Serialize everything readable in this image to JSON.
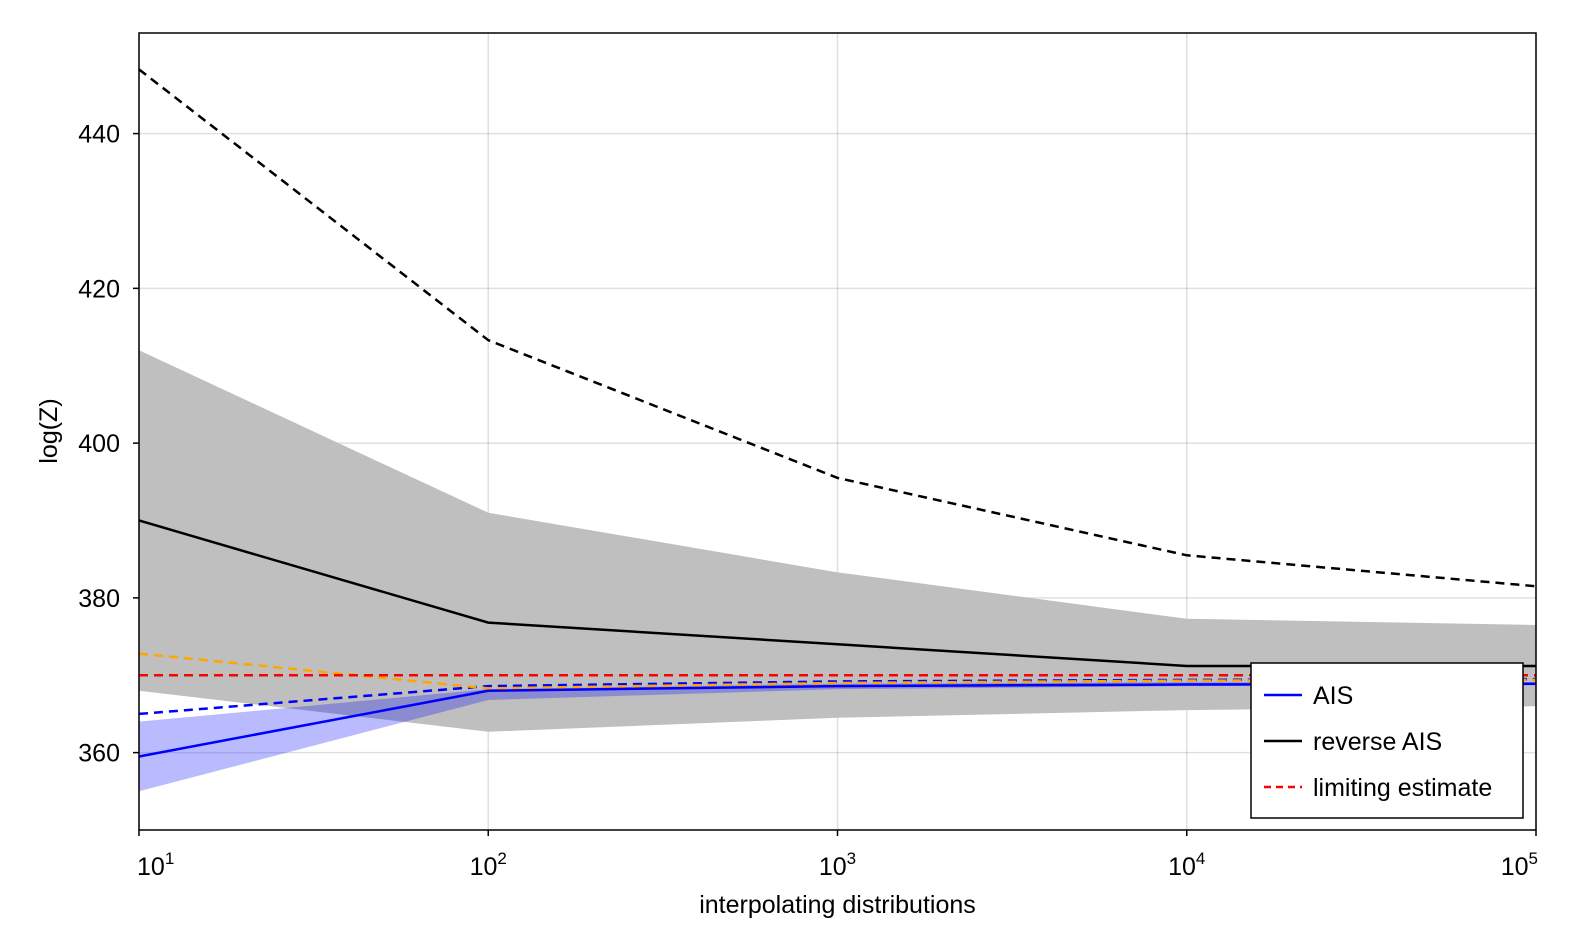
{
  "chart_data": {
    "type": "line",
    "title": "",
    "xlabel": "interpolating distributions",
    "ylabel": "log(Z)",
    "xscale": "log10",
    "xlim": [
      10,
      100000
    ],
    "ylim": [
      350,
      453
    ],
    "x": [
      10,
      100,
      1000,
      10000,
      100000
    ],
    "x_tick_labels": [
      {
        "base": "10",
        "exp": "1"
      },
      {
        "base": "10",
        "exp": "2"
      },
      {
        "base": "10",
        "exp": "3"
      },
      {
        "base": "10",
        "exp": "4"
      },
      {
        "base": "10",
        "exp": "5"
      }
    ],
    "y_ticks": [
      360,
      380,
      400,
      420,
      440
    ],
    "y_tick_labels": [
      "360",
      "380",
      "400",
      "420",
      "440"
    ],
    "grid": true,
    "legend_position": "bottom-right",
    "bands": [
      {
        "color": "#bfbfbf",
        "opacity": 1.0,
        "lower": [
          368,
          362.7,
          364.5,
          365.5,
          366
        ],
        "upper": [
          412,
          391,
          383.3,
          377.3,
          376.5
        ]
      },
      {
        "color": "#0000ff",
        "opacity": 0.27,
        "lower": [
          355,
          366.8,
          368.2,
          368.6,
          368.7
        ],
        "upper": [
          364,
          368.2,
          368.9,
          369.1,
          369.1
        ]
      }
    ],
    "series": [
      {
        "name": "AIS",
        "values": [
          359.5,
          368,
          368.6,
          368.8,
          368.9
        ],
        "color": "#0000ff",
        "style": "solid"
      },
      {
        "name": "reverse AIS",
        "values": [
          390,
          376.8,
          374,
          371.2,
          371.2
        ],
        "color": "#000000",
        "style": "solid"
      },
      {
        "name": "limiting estimate",
        "values": [
          370,
          370,
          370,
          370,
          370
        ],
        "color": "#ff0000",
        "style": "dashed"
      },
      {
        "values": [
          448.3,
          413.3,
          395.5,
          385.5,
          381.5
        ],
        "color": "#000000",
        "style": "dashed"
      },
      {
        "values": [
          365,
          368.6,
          369.2,
          369.4,
          369.5
        ],
        "color": "#0000ff",
        "style": "dashed"
      },
      {
        "values": [
          372.8,
          368.3,
          369,
          369.3,
          369.4
        ],
        "color": "#ffa500",
        "style": "dashed"
      }
    ]
  }
}
